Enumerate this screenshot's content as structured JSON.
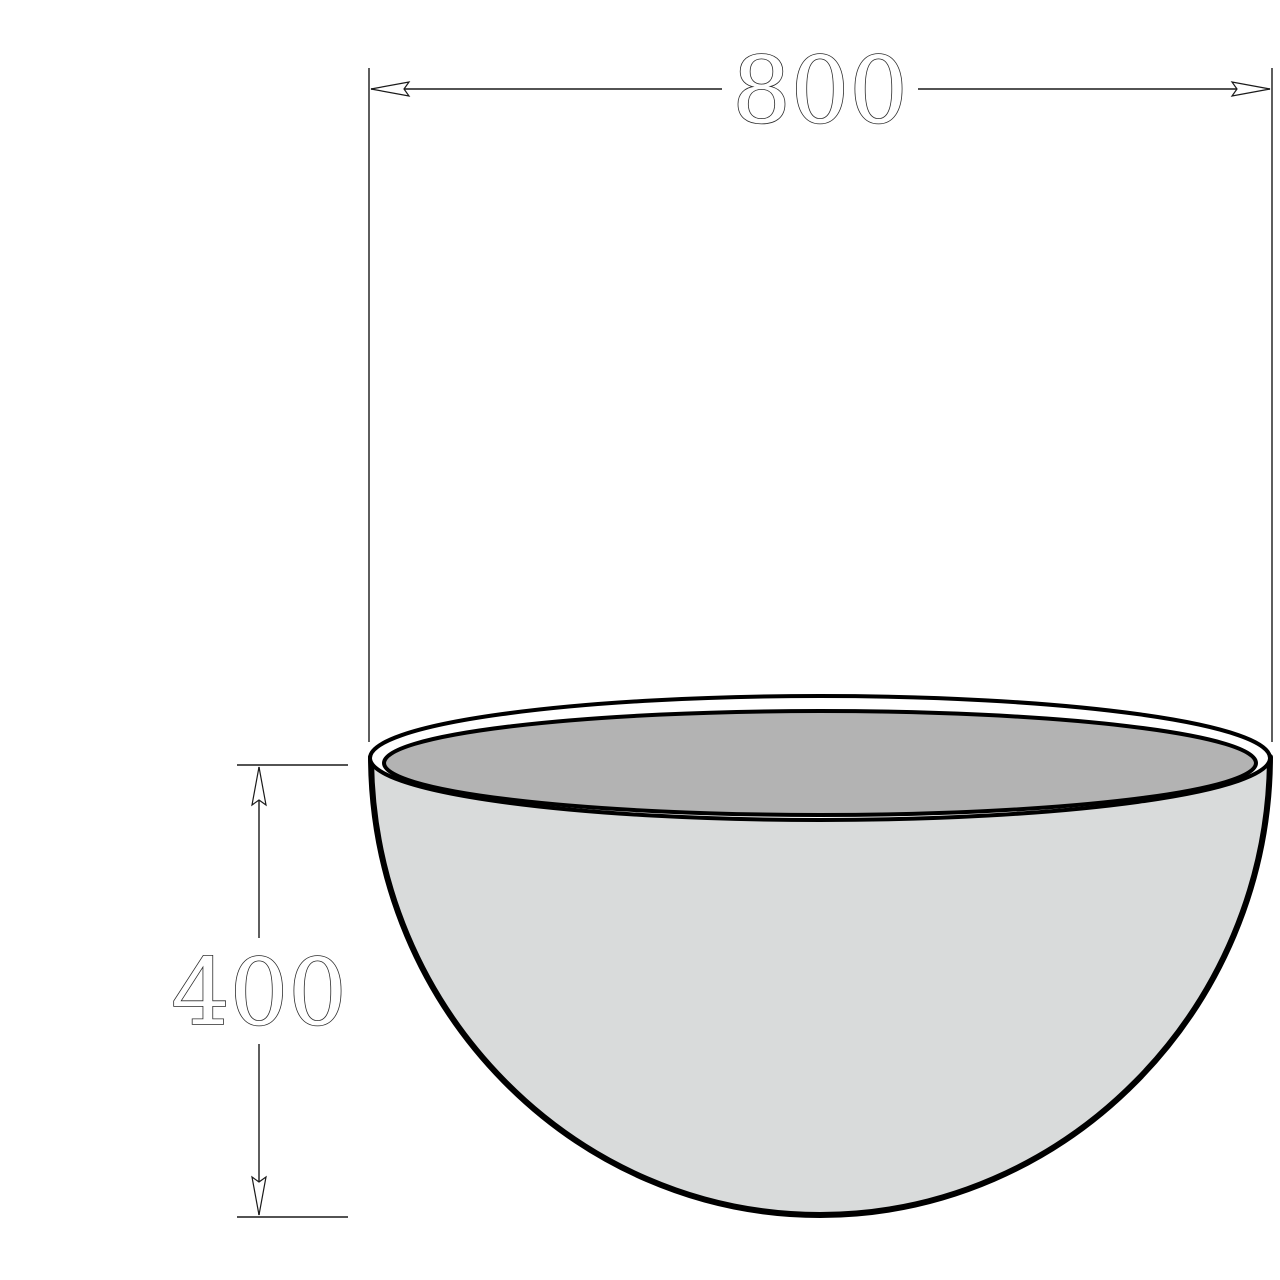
{
  "dimensions": {
    "width_label": "800",
    "height_label": "400"
  },
  "colors": {
    "bowl_exterior": "#d9dbdb",
    "bowl_interior": "#b3b3b3",
    "outline": "#000000",
    "dimension_lines": "#1a1a1a"
  }
}
